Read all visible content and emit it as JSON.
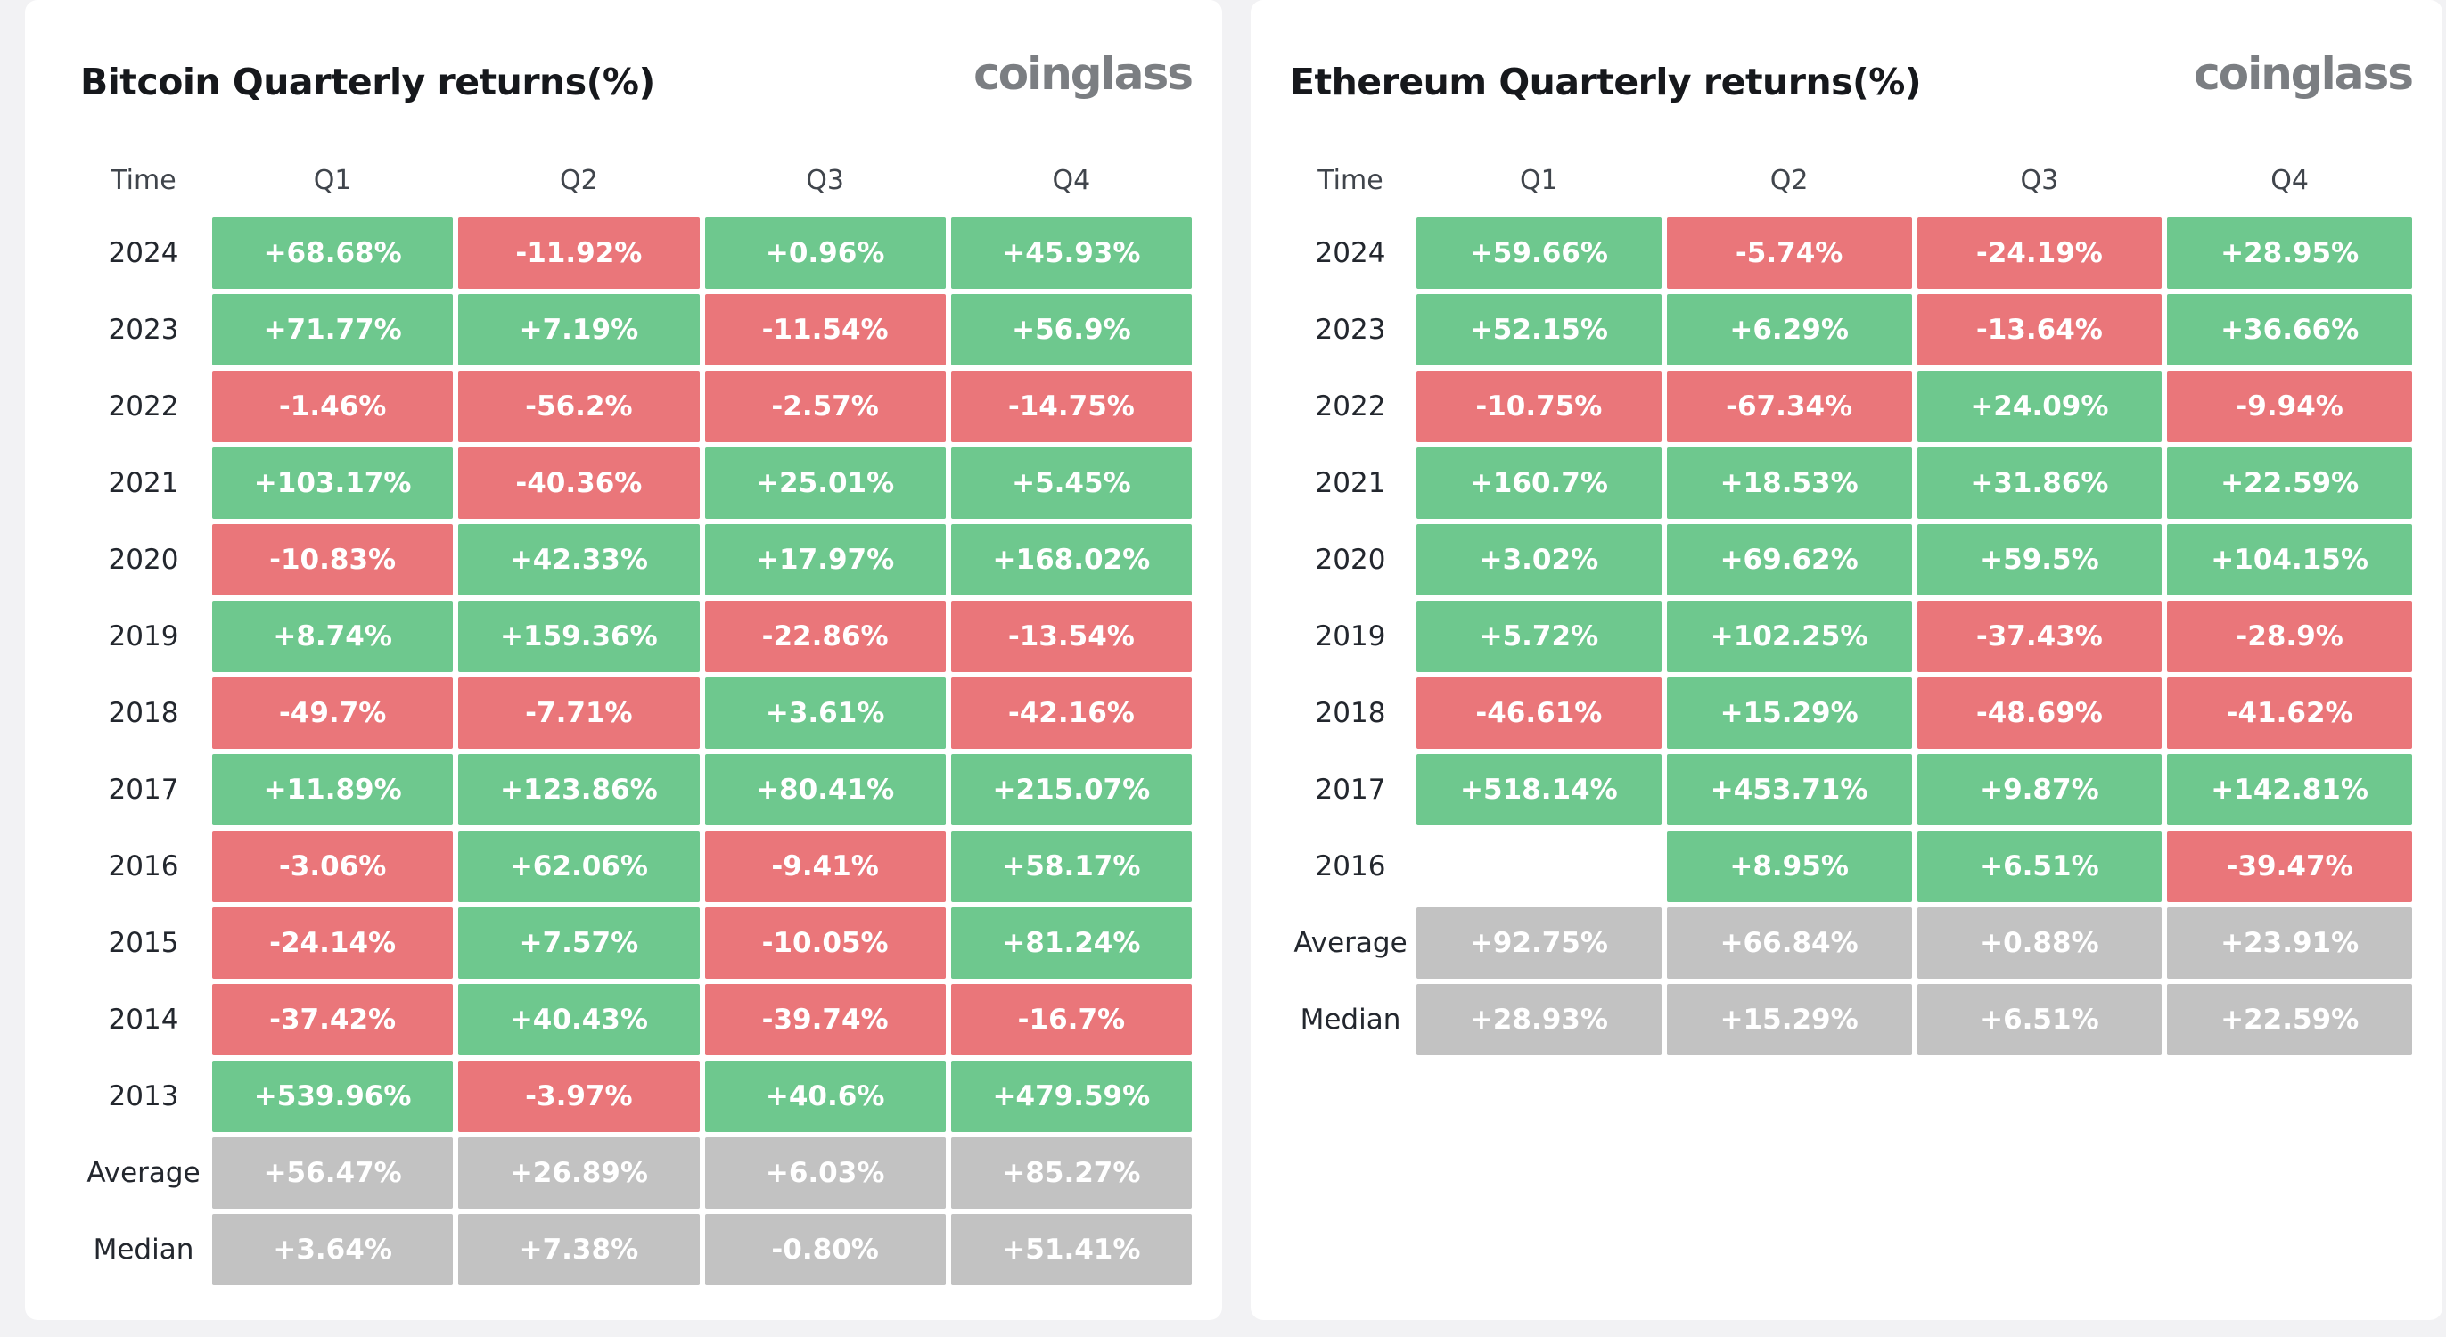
{
  "colors": {
    "pos": "#6ec88e",
    "neg": "#ea767a",
    "avg": "#c2c2c2",
    "card_bg": "#ffffff",
    "page_bg": "#f2f2f4",
    "title_text": "#16181c",
    "logo_text": "#7b7e82",
    "cell_text": "#ffffff"
  },
  "chart_data": [
    {
      "type": "heatmap",
      "title": "Bitcoin Quarterly returns(%)",
      "watermark": "coinglass",
      "columns": [
        "Time",
        "Q1",
        "Q2",
        "Q3",
        "Q4"
      ],
      "rows": [
        {
          "label": "2024",
          "cells": [
            {
              "value": "+68.68%",
              "tone": "pos"
            },
            {
              "value": "-11.92%",
              "tone": "neg"
            },
            {
              "value": "+0.96%",
              "tone": "pos"
            },
            {
              "value": "+45.93%",
              "tone": "pos"
            }
          ]
        },
        {
          "label": "2023",
          "cells": [
            {
              "value": "+71.77%",
              "tone": "pos"
            },
            {
              "value": "+7.19%",
              "tone": "pos"
            },
            {
              "value": "-11.54%",
              "tone": "neg"
            },
            {
              "value": "+56.9%",
              "tone": "pos"
            }
          ]
        },
        {
          "label": "2022",
          "cells": [
            {
              "value": "-1.46%",
              "tone": "neg"
            },
            {
              "value": "-56.2%",
              "tone": "neg"
            },
            {
              "value": "-2.57%",
              "tone": "neg"
            },
            {
              "value": "-14.75%",
              "tone": "neg"
            }
          ]
        },
        {
          "label": "2021",
          "cells": [
            {
              "value": "+103.17%",
              "tone": "pos"
            },
            {
              "value": "-40.36%",
              "tone": "neg"
            },
            {
              "value": "+25.01%",
              "tone": "pos"
            },
            {
              "value": "+5.45%",
              "tone": "pos"
            }
          ]
        },
        {
          "label": "2020",
          "cells": [
            {
              "value": "-10.83%",
              "tone": "neg"
            },
            {
              "value": "+42.33%",
              "tone": "pos"
            },
            {
              "value": "+17.97%",
              "tone": "pos"
            },
            {
              "value": "+168.02%",
              "tone": "pos"
            }
          ]
        },
        {
          "label": "2019",
          "cells": [
            {
              "value": "+8.74%",
              "tone": "pos"
            },
            {
              "value": "+159.36%",
              "tone": "pos"
            },
            {
              "value": "-22.86%",
              "tone": "neg"
            },
            {
              "value": "-13.54%",
              "tone": "neg"
            }
          ]
        },
        {
          "label": "2018",
          "cells": [
            {
              "value": "-49.7%",
              "tone": "neg"
            },
            {
              "value": "-7.71%",
              "tone": "neg"
            },
            {
              "value": "+3.61%",
              "tone": "pos"
            },
            {
              "value": "-42.16%",
              "tone": "neg"
            }
          ]
        },
        {
          "label": "2017",
          "cells": [
            {
              "value": "+11.89%",
              "tone": "pos"
            },
            {
              "value": "+123.86%",
              "tone": "pos"
            },
            {
              "value": "+80.41%",
              "tone": "pos"
            },
            {
              "value": "+215.07%",
              "tone": "pos"
            }
          ]
        },
        {
          "label": "2016",
          "cells": [
            {
              "value": "-3.06%",
              "tone": "neg"
            },
            {
              "value": "+62.06%",
              "tone": "pos"
            },
            {
              "value": "-9.41%",
              "tone": "neg"
            },
            {
              "value": "+58.17%",
              "tone": "pos"
            }
          ]
        },
        {
          "label": "2015",
          "cells": [
            {
              "value": "-24.14%",
              "tone": "neg"
            },
            {
              "value": "+7.57%",
              "tone": "pos"
            },
            {
              "value": "-10.05%",
              "tone": "neg"
            },
            {
              "value": "+81.24%",
              "tone": "pos"
            }
          ]
        },
        {
          "label": "2014",
          "cells": [
            {
              "value": "-37.42%",
              "tone": "neg"
            },
            {
              "value": "+40.43%",
              "tone": "pos"
            },
            {
              "value": "-39.74%",
              "tone": "neg"
            },
            {
              "value": "-16.7%",
              "tone": "neg"
            }
          ]
        },
        {
          "label": "2013",
          "cells": [
            {
              "value": "+539.96%",
              "tone": "pos"
            },
            {
              "value": "-3.97%",
              "tone": "neg"
            },
            {
              "value": "+40.6%",
              "tone": "pos"
            },
            {
              "value": "+479.59%",
              "tone": "pos"
            }
          ]
        },
        {
          "label": "Average",
          "cells": [
            {
              "value": "+56.47%",
              "tone": "avg"
            },
            {
              "value": "+26.89%",
              "tone": "avg"
            },
            {
              "value": "+6.03%",
              "tone": "avg"
            },
            {
              "value": "+85.27%",
              "tone": "avg"
            }
          ]
        },
        {
          "label": "Median",
          "cells": [
            {
              "value": "+3.64%",
              "tone": "avg"
            },
            {
              "value": "+7.38%",
              "tone": "avg"
            },
            {
              "value": "-0.80%",
              "tone": "avg"
            },
            {
              "value": "+51.41%",
              "tone": "avg"
            }
          ]
        }
      ]
    },
    {
      "type": "heatmap",
      "title": "Ethereum Quarterly returns(%)",
      "watermark": "coinglass",
      "columns": [
        "Time",
        "Q1",
        "Q2",
        "Q3",
        "Q4"
      ],
      "rows": [
        {
          "label": "2024",
          "cells": [
            {
              "value": "+59.66%",
              "tone": "pos"
            },
            {
              "value": "-5.74%",
              "tone": "neg"
            },
            {
              "value": "-24.19%",
              "tone": "neg"
            },
            {
              "value": "+28.95%",
              "tone": "pos"
            }
          ]
        },
        {
          "label": "2023",
          "cells": [
            {
              "value": "+52.15%",
              "tone": "pos"
            },
            {
              "value": "+6.29%",
              "tone": "pos"
            },
            {
              "value": "-13.64%",
              "tone": "neg"
            },
            {
              "value": "+36.66%",
              "tone": "pos"
            }
          ]
        },
        {
          "label": "2022",
          "cells": [
            {
              "value": "-10.75%",
              "tone": "neg"
            },
            {
              "value": "-67.34%",
              "tone": "neg"
            },
            {
              "value": "+24.09%",
              "tone": "pos"
            },
            {
              "value": "-9.94%",
              "tone": "neg"
            }
          ]
        },
        {
          "label": "2021",
          "cells": [
            {
              "value": "+160.7%",
              "tone": "pos"
            },
            {
              "value": "+18.53%",
              "tone": "pos"
            },
            {
              "value": "+31.86%",
              "tone": "pos"
            },
            {
              "value": "+22.59%",
              "tone": "pos"
            }
          ]
        },
        {
          "label": "2020",
          "cells": [
            {
              "value": "+3.02%",
              "tone": "pos"
            },
            {
              "value": "+69.62%",
              "tone": "pos"
            },
            {
              "value": "+59.5%",
              "tone": "pos"
            },
            {
              "value": "+104.15%",
              "tone": "pos"
            }
          ]
        },
        {
          "label": "2019",
          "cells": [
            {
              "value": "+5.72%",
              "tone": "pos"
            },
            {
              "value": "+102.25%",
              "tone": "pos"
            },
            {
              "value": "-37.43%",
              "tone": "neg"
            },
            {
              "value": "-28.9%",
              "tone": "neg"
            }
          ]
        },
        {
          "label": "2018",
          "cells": [
            {
              "value": "-46.61%",
              "tone": "neg"
            },
            {
              "value": "+15.29%",
              "tone": "pos"
            },
            {
              "value": "-48.69%",
              "tone": "neg"
            },
            {
              "value": "-41.62%",
              "tone": "neg"
            }
          ]
        },
        {
          "label": "2017",
          "cells": [
            {
              "value": "+518.14%",
              "tone": "pos"
            },
            {
              "value": "+453.71%",
              "tone": "pos"
            },
            {
              "value": "+9.87%",
              "tone": "pos"
            },
            {
              "value": "+142.81%",
              "tone": "pos"
            }
          ]
        },
        {
          "label": "2016",
          "cells": [
            {
              "value": "",
              "tone": "empty"
            },
            {
              "value": "+8.95%",
              "tone": "pos"
            },
            {
              "value": "+6.51%",
              "tone": "pos"
            },
            {
              "value": "-39.47%",
              "tone": "neg"
            }
          ]
        },
        {
          "label": "Average",
          "cells": [
            {
              "value": "+92.75%",
              "tone": "avg"
            },
            {
              "value": "+66.84%",
              "tone": "avg"
            },
            {
              "value": "+0.88%",
              "tone": "avg"
            },
            {
              "value": "+23.91%",
              "tone": "avg"
            }
          ]
        },
        {
          "label": "Median",
          "cells": [
            {
              "value": "+28.93%",
              "tone": "avg"
            },
            {
              "value": "+15.29%",
              "tone": "avg"
            },
            {
              "value": "+6.51%",
              "tone": "avg"
            },
            {
              "value": "+22.59%",
              "tone": "avg"
            }
          ]
        }
      ]
    }
  ]
}
